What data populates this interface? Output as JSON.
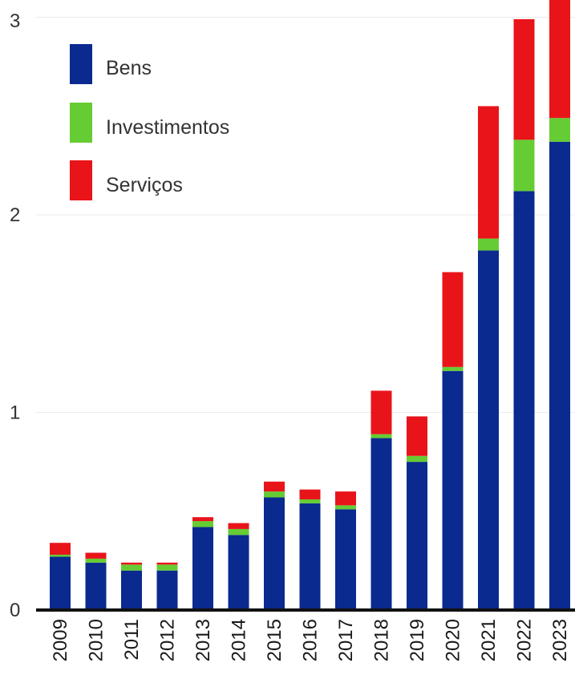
{
  "chart_data": {
    "type": "bar",
    "stacked": true,
    "categories": [
      "2009",
      "2010",
      "2011",
      "2012",
      "2013",
      "2014",
      "2015",
      "2016",
      "2017",
      "2018",
      "2019",
      "2020",
      "2021",
      "2022",
      "2023"
    ],
    "series": [
      {
        "name": "Bens",
        "color": "#0a2a8f",
        "values": [
          0.27,
          0.24,
          0.2,
          0.2,
          0.42,
          0.38,
          0.57,
          0.54,
          0.51,
          0.87,
          0.75,
          1.21,
          1.82,
          2.12,
          2.37
        ]
      },
      {
        "name": "Investimentos",
        "color": "#66cc33",
        "values": [
          0.01,
          0.02,
          0.03,
          0.03,
          0.03,
          0.03,
          0.03,
          0.02,
          0.02,
          0.02,
          0.03,
          0.02,
          0.06,
          0.26,
          0.12
        ]
      },
      {
        "name": "Serviços",
        "color": "#e8141a",
        "values": [
          0.06,
          0.03,
          0.01,
          0.01,
          0.02,
          0.03,
          0.05,
          0.05,
          0.07,
          0.22,
          0.2,
          0.48,
          0.67,
          0.61,
          0.61
        ]
      }
    ],
    "yticks": [
      0,
      1,
      2,
      3
    ],
    "ylim": [
      0,
      3.1
    ],
    "title": "",
    "xlabel": "",
    "ylabel": "",
    "legend_position": "top-left",
    "grid": true
  }
}
